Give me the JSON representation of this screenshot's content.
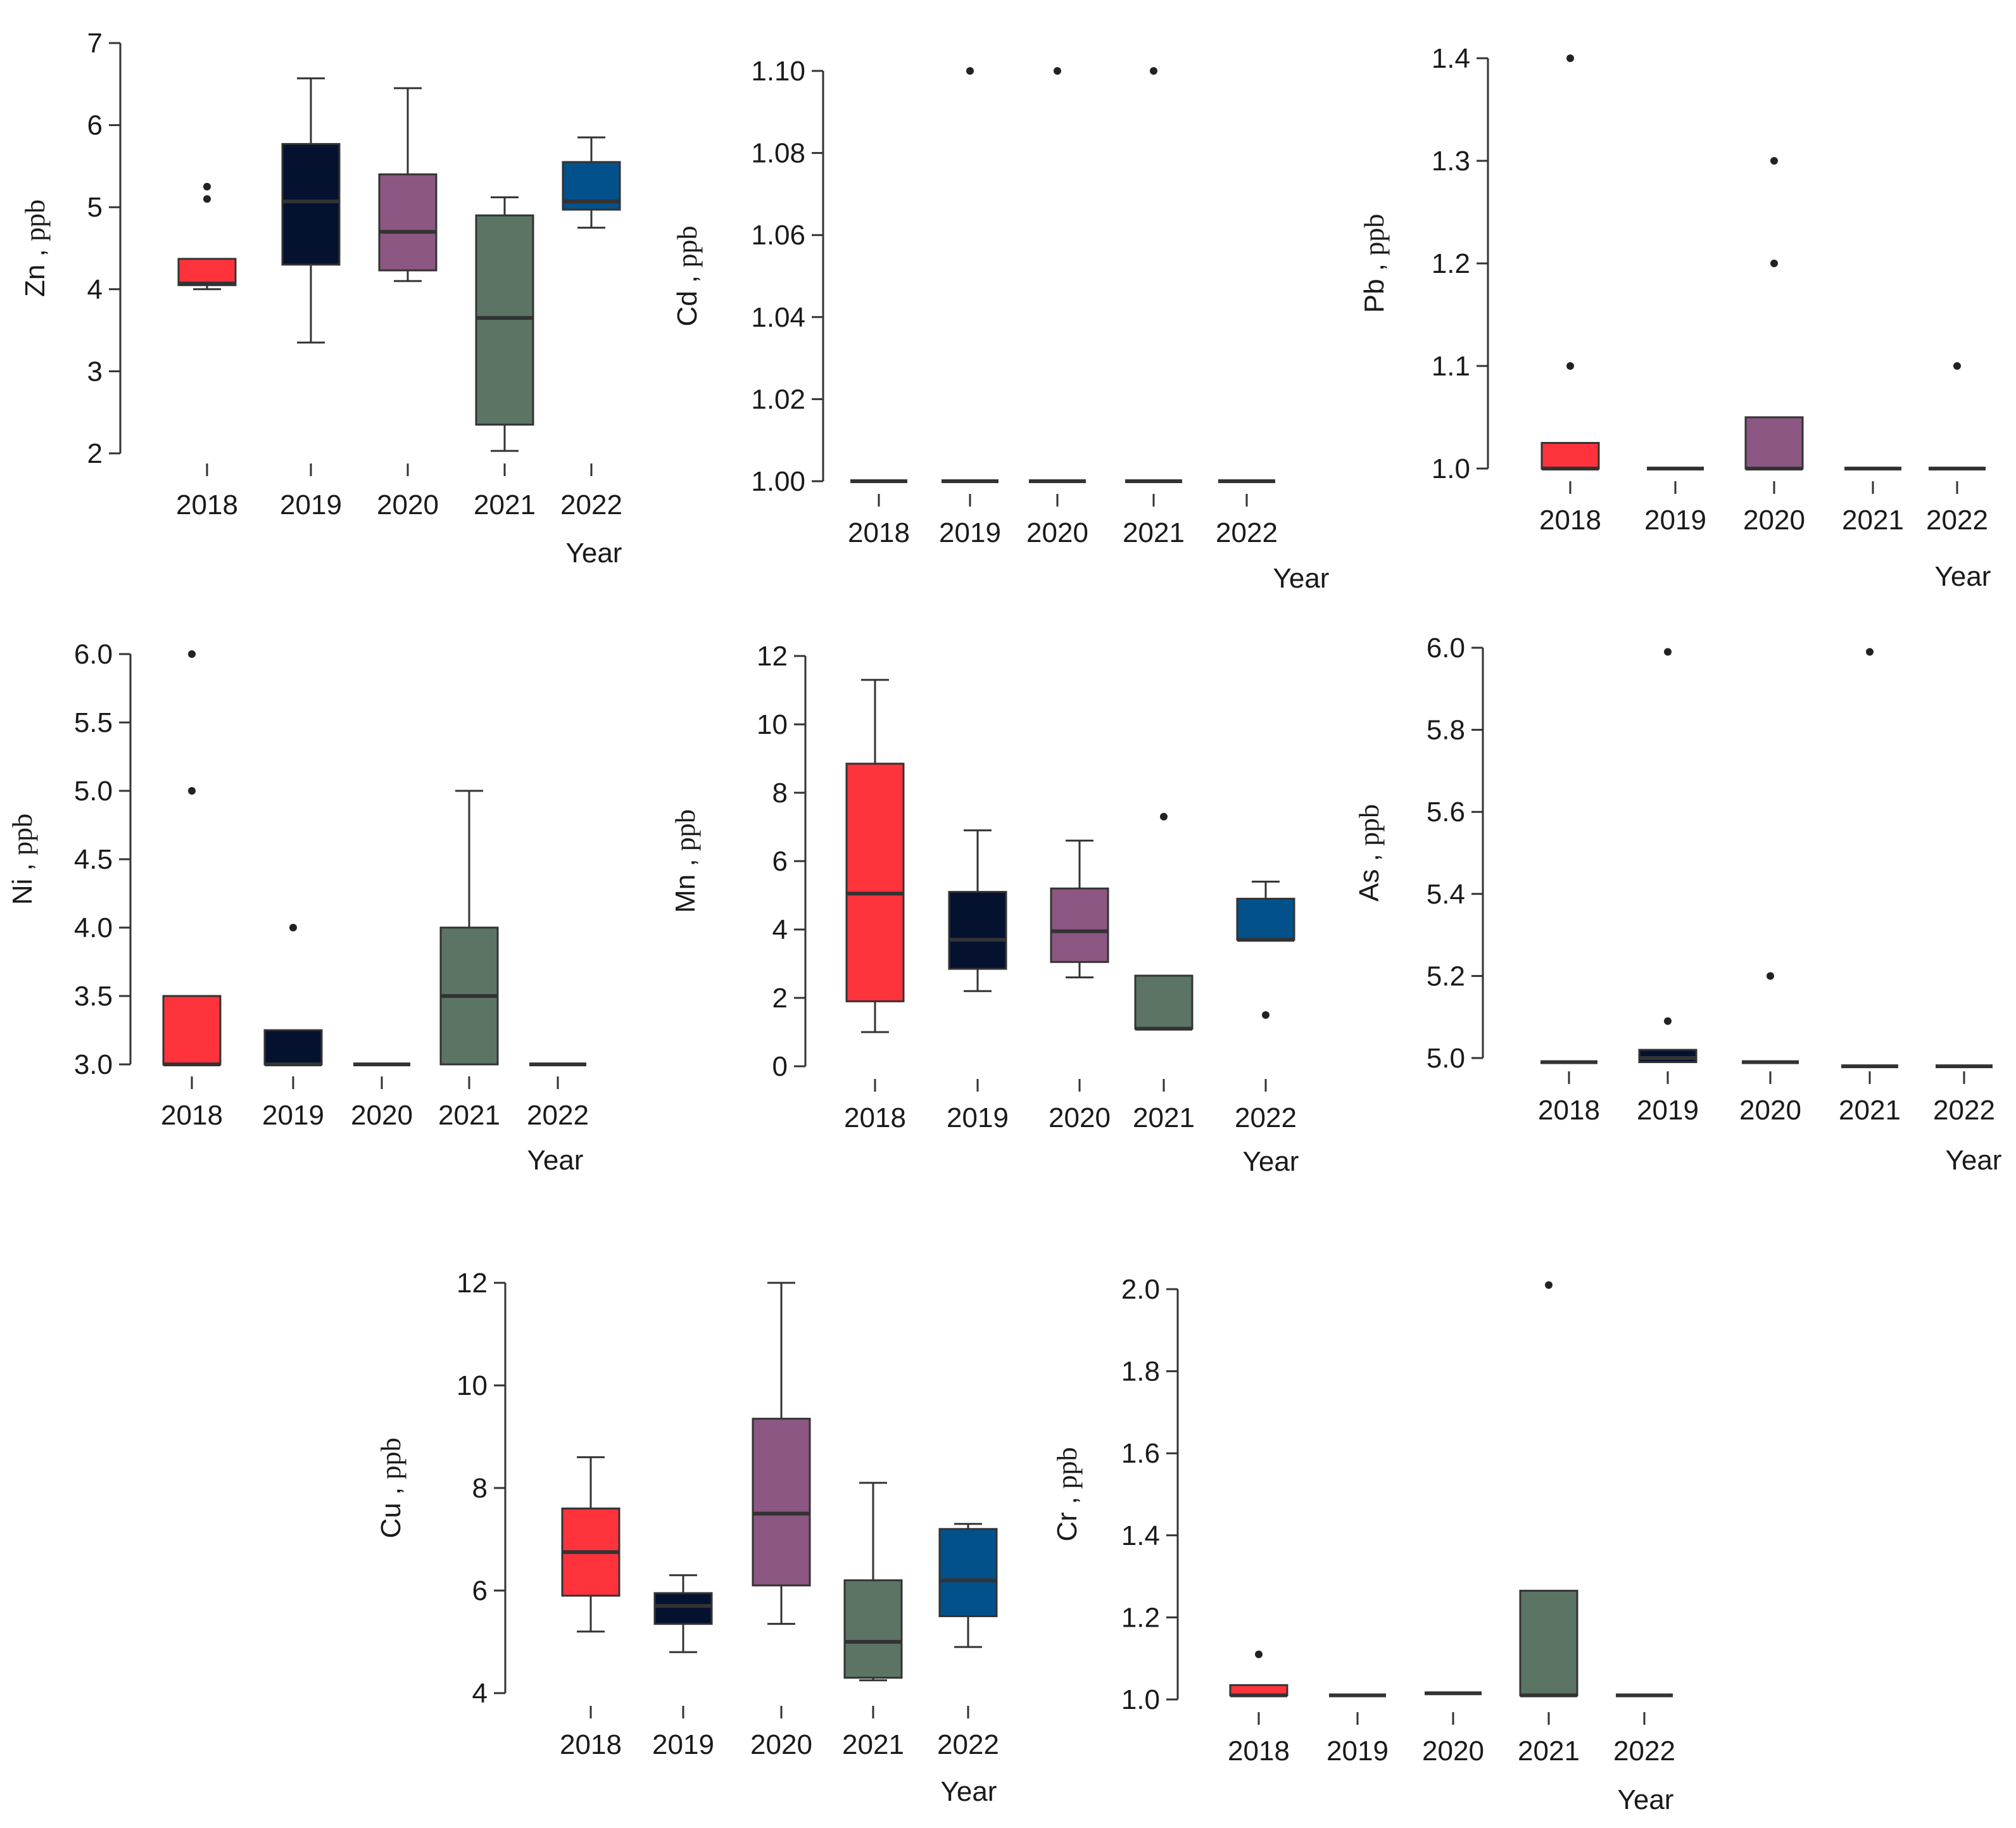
{
  "colors": {
    "2018": "#ff333b",
    "2019": "#04112f",
    "2020": "#8c5782",
    "2021": "#5c7464",
    "2022": "#03518b",
    "axis": "#333333",
    "median": "#333333",
    "outlier": "#222222"
  },
  "chart_data": [
    {
      "type": "box",
      "element": "Zn",
      "ylabel_element": "Zn ,",
      "ylabel_unit": "ppb",
      "xlabel": "Year",
      "categories": [
        "2018",
        "2019",
        "2020",
        "2021",
        "2022"
      ],
      "yticks": [
        "2",
        "3",
        "4",
        "5",
        "6",
        "7"
      ],
      "ytick_values": [
        2,
        3,
        4,
        5,
        6,
        7
      ],
      "ylim": [
        2,
        7
      ],
      "boxes": [
        {
          "year": "2018",
          "q1": 4.05,
          "median": 4.07,
          "q3": 4.37,
          "low": 4.0,
          "high": 4.37,
          "outliers": [
            5.1,
            5.25
          ]
        },
        {
          "year": "2019",
          "q1": 4.3,
          "median": 5.07,
          "q3": 5.77,
          "low": 3.35,
          "high": 6.57,
          "outliers": []
        },
        {
          "year": "2020",
          "q1": 4.23,
          "median": 4.7,
          "q3": 5.4,
          "low": 4.1,
          "high": 6.45,
          "outliers": []
        },
        {
          "year": "2021",
          "q1": 2.35,
          "median": 3.65,
          "q3": 4.9,
          "low": 2.03,
          "high": 5.12,
          "outliers": []
        },
        {
          "year": "2022",
          "q1": 4.97,
          "median": 5.07,
          "q3": 5.55,
          "low": 4.75,
          "high": 5.85,
          "outliers": []
        }
      ]
    },
    {
      "type": "box",
      "element": "Cd",
      "ylabel_element": "Cd ,",
      "ylabel_unit": "ppb",
      "xlabel": "Year",
      "categories": [
        "2018",
        "2019",
        "2020",
        "2021",
        "2022"
      ],
      "yticks": [
        "1.00",
        "1.02",
        "1.04",
        "1.06",
        "1.08",
        "1.10"
      ],
      "ytick_values": [
        1.0,
        1.02,
        1.04,
        1.06,
        1.08,
        1.1
      ],
      "ylim": [
        1.0,
        1.1
      ],
      "boxes": [
        {
          "year": "2018",
          "q1": 1.0,
          "median": 1.0,
          "q3": 1.0,
          "low": 1.0,
          "high": 1.0,
          "outliers": []
        },
        {
          "year": "2019",
          "q1": 1.0,
          "median": 1.0,
          "q3": 1.0,
          "low": 1.0,
          "high": 1.0,
          "outliers": [
            1.1
          ]
        },
        {
          "year": "2020",
          "q1": 1.0,
          "median": 1.0,
          "q3": 1.0,
          "low": 1.0,
          "high": 1.0,
          "outliers": [
            1.1
          ]
        },
        {
          "year": "2021",
          "q1": 1.0,
          "median": 1.0,
          "q3": 1.0,
          "low": 1.0,
          "high": 1.0,
          "outliers": [
            1.1
          ]
        },
        {
          "year": "2022",
          "q1": 1.0,
          "median": 1.0,
          "q3": 1.0,
          "low": 1.0,
          "high": 1.0,
          "outliers": []
        }
      ]
    },
    {
      "type": "box",
      "element": "Pb",
      "ylabel_element": "Pb ,",
      "ylabel_unit": "ppb",
      "xlabel": "Year",
      "categories": [
        "2018",
        "2019",
        "2020",
        "2021",
        "2022"
      ],
      "yticks": [
        "1.0",
        "1.1",
        "1.2",
        "1.3",
        "1.4"
      ],
      "ytick_values": [
        1.0,
        1.1,
        1.2,
        1.3,
        1.4
      ],
      "ylim": [
        1.0,
        1.4
      ],
      "boxes": [
        {
          "year": "2018",
          "q1": 1.0,
          "median": 1.0,
          "q3": 1.025,
          "low": 1.0,
          "high": 1.025,
          "outliers": [
            1.1,
            1.4
          ]
        },
        {
          "year": "2019",
          "q1": 1.0,
          "median": 1.0,
          "q3": 1.0,
          "low": 1.0,
          "high": 1.0,
          "outliers": []
        },
        {
          "year": "2020",
          "q1": 1.0,
          "median": 1.0,
          "q3": 1.05,
          "low": 1.0,
          "high": 1.05,
          "outliers": [
            1.2,
            1.3
          ]
        },
        {
          "year": "2021",
          "q1": 1.0,
          "median": 1.0,
          "q3": 1.0,
          "low": 1.0,
          "high": 1.0,
          "outliers": []
        },
        {
          "year": "2022",
          "q1": 1.0,
          "median": 1.0,
          "q3": 1.0,
          "low": 1.0,
          "high": 1.0,
          "outliers": [
            1.1
          ]
        }
      ]
    },
    {
      "type": "box",
      "element": "Ni",
      "ylabel_element": "Ni ,",
      "ylabel_unit": "ppb",
      "xlabel": "Year",
      "categories": [
        "2018",
        "2019",
        "2020",
        "2021",
        "2022"
      ],
      "yticks": [
        "3.0",
        "3.5",
        "4.0",
        "4.5",
        "5.0",
        "5.5",
        "6.0"
      ],
      "ytick_values": [
        3.0,
        3.5,
        4.0,
        4.5,
        5.0,
        5.5,
        6.0
      ],
      "ylim": [
        3.0,
        6.0
      ],
      "boxes": [
        {
          "year": "2018",
          "q1": 3.0,
          "median": 3.0,
          "q3": 3.5,
          "low": 3.0,
          "high": 3.5,
          "outliers": [
            5.0,
            6.0
          ]
        },
        {
          "year": "2019",
          "q1": 3.0,
          "median": 3.0,
          "q3": 3.25,
          "low": 3.0,
          "high": 3.25,
          "outliers": [
            4.0
          ]
        },
        {
          "year": "2020",
          "q1": 3.0,
          "median": 3.0,
          "q3": 3.0,
          "low": 3.0,
          "high": 3.0,
          "outliers": []
        },
        {
          "year": "2021",
          "q1": 3.0,
          "median": 3.5,
          "q3": 4.0,
          "low": 3.0,
          "high": 5.0,
          "outliers": []
        },
        {
          "year": "2022",
          "q1": 3.0,
          "median": 3.0,
          "q3": 3.0,
          "low": 3.0,
          "high": 3.0,
          "outliers": []
        }
      ]
    },
    {
      "type": "box",
      "element": "Mn",
      "ylabel_element": "Mn ,",
      "ylabel_unit": "ppb",
      "xlabel": "Year",
      "categories": [
        "2018",
        "2019",
        "2020",
        "2021",
        "2022"
      ],
      "yticks": [
        "0",
        "2",
        "4",
        "6",
        "8",
        "10",
        "12"
      ],
      "ytick_values": [
        0,
        2,
        4,
        6,
        8,
        10,
        12
      ],
      "ylim": [
        0,
        12
      ],
      "boxes": [
        {
          "year": "2018",
          "q1": 1.9,
          "median": 5.05,
          "q3": 8.85,
          "low": 1.0,
          "high": 11.3,
          "outliers": []
        },
        {
          "year": "2019",
          "q1": 2.85,
          "median": 3.7,
          "q3": 5.1,
          "low": 2.2,
          "high": 6.9,
          "outliers": []
        },
        {
          "year": "2020",
          "q1": 3.05,
          "median": 3.95,
          "q3": 5.2,
          "low": 2.6,
          "high": 6.6,
          "outliers": []
        },
        {
          "year": "2021",
          "q1": 1.1,
          "median": 1.1,
          "q3": 2.65,
          "low": 1.1,
          "high": 2.65,
          "outliers": [
            7.3
          ]
        },
        {
          "year": "2022",
          "q1": 3.7,
          "median": 3.7,
          "q3": 4.9,
          "low": 3.7,
          "high": 5.4,
          "outliers": [
            1.5
          ]
        }
      ]
    },
    {
      "type": "box",
      "element": "As",
      "ylabel_element": "As ,",
      "ylabel_unit": "ppb",
      "xlabel": "Year",
      "categories": [
        "2018",
        "2019",
        "2020",
        "2021",
        "2022"
      ],
      "yticks": [
        "5.0",
        "5.2",
        "5.4",
        "5.6",
        "5.8",
        "6.0"
      ],
      "ytick_values": [
        5.0,
        5.2,
        5.4,
        5.6,
        5.8,
        6.0
      ],
      "ylim": [
        5.0,
        6.0
      ],
      "boxes": [
        {
          "year": "2018",
          "q1": 4.99,
          "median": 4.99,
          "q3": 4.99,
          "low": 4.99,
          "high": 4.99,
          "outliers": []
        },
        {
          "year": "2019",
          "q1": 4.99,
          "median": 5.0,
          "q3": 5.02,
          "low": 4.99,
          "high": 5.02,
          "outliers": [
            5.09,
            5.99
          ]
        },
        {
          "year": "2020",
          "q1": 4.99,
          "median": 4.99,
          "q3": 4.99,
          "low": 4.99,
          "high": 4.99,
          "outliers": [
            5.2
          ]
        },
        {
          "year": "2021",
          "q1": 4.98,
          "median": 4.98,
          "q3": 4.98,
          "low": 4.98,
          "high": 4.98,
          "outliers": [
            5.99
          ]
        },
        {
          "year": "2022",
          "q1": 4.98,
          "median": 4.98,
          "q3": 4.98,
          "low": 4.98,
          "high": 4.98,
          "outliers": []
        }
      ]
    },
    {
      "type": "box",
      "element": "Cu",
      "ylabel_element": "Cu ,",
      "ylabel_unit": "ppb",
      "xlabel": "Year",
      "categories": [
        "2018",
        "2019",
        "2020",
        "2021",
        "2022"
      ],
      "yticks": [
        "4",
        "6",
        "8",
        "10",
        "12"
      ],
      "ytick_values": [
        4,
        6,
        8,
        10,
        12
      ],
      "ylim": [
        4,
        12
      ],
      "boxes": [
        {
          "year": "2018",
          "q1": 5.9,
          "median": 6.75,
          "q3": 7.6,
          "low": 5.2,
          "high": 8.6,
          "outliers": []
        },
        {
          "year": "2019",
          "q1": 5.35,
          "median": 5.7,
          "q3": 5.95,
          "low": 4.8,
          "high": 6.3,
          "outliers": []
        },
        {
          "year": "2020",
          "q1": 6.1,
          "median": 7.5,
          "q3": 9.35,
          "low": 5.35,
          "high": 12.0,
          "outliers": []
        },
        {
          "year": "2021",
          "q1": 4.3,
          "median": 5.0,
          "q3": 6.2,
          "low": 4.25,
          "high": 8.1,
          "outliers": []
        },
        {
          "year": "2022",
          "q1": 5.5,
          "median": 6.2,
          "q3": 7.2,
          "low": 4.9,
          "high": 7.3,
          "outliers": []
        }
      ]
    },
    {
      "type": "box",
      "element": "Cr",
      "ylabel_element": "Cr ,",
      "ylabel_unit": "ppb",
      "xlabel": "Year",
      "categories": [
        "2018",
        "2019",
        "2020",
        "2021",
        "2022"
      ],
      "yticks": [
        "1.0",
        "1.2",
        "1.4",
        "1.6",
        "1.8",
        "2.0"
      ],
      "ytick_values": [
        1.0,
        1.2,
        1.4,
        1.6,
        1.8,
        2.0
      ],
      "ylim": [
        1.0,
        2.0
      ],
      "boxes": [
        {
          "year": "2018",
          "q1": 1.01,
          "median": 1.01,
          "q3": 1.035,
          "low": 1.01,
          "high": 1.035,
          "outliers": [
            1.11
          ]
        },
        {
          "year": "2019",
          "q1": 1.01,
          "median": 1.01,
          "q3": 1.01,
          "low": 1.01,
          "high": 1.01,
          "outliers": []
        },
        {
          "year": "2020",
          "q1": 1.015,
          "median": 1.015,
          "q3": 1.015,
          "low": 1.015,
          "high": 1.015,
          "outliers": []
        },
        {
          "year": "2021",
          "q1": 1.01,
          "median": 1.01,
          "q3": 1.265,
          "low": 1.01,
          "high": 1.265,
          "outliers": [
            2.01
          ]
        },
        {
          "year": "2022",
          "q1": 1.01,
          "median": 1.01,
          "q3": 1.01,
          "low": 1.01,
          "high": 1.01,
          "outliers": []
        }
      ]
    }
  ]
}
